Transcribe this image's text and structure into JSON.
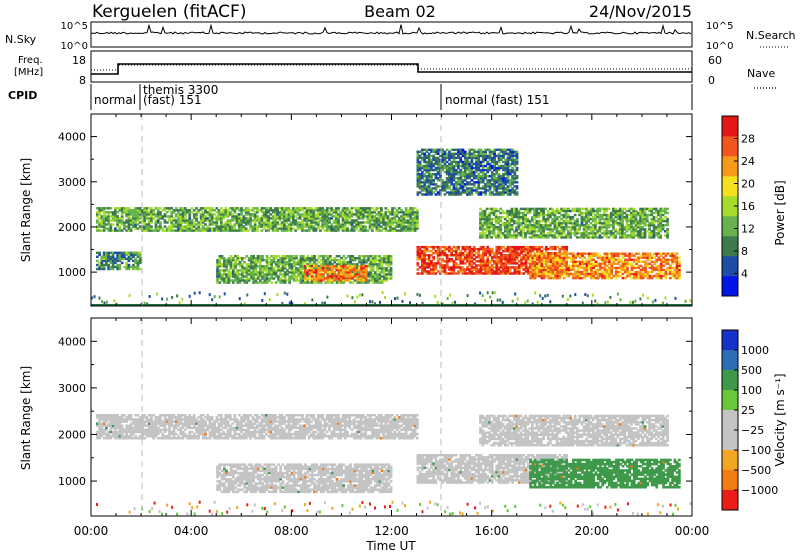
{
  "header": {
    "title": "Kerguelen (fitACF)",
    "beam": "Beam 02",
    "date": "24/Nov/2015"
  },
  "sky_panel": {
    "left_label": "N.Sky",
    "right_label": "N.Search",
    "left_ticks": [
      "10^5",
      "10^0"
    ],
    "right_ticks": [
      "10^5",
      "10^0"
    ]
  },
  "freq_panel": {
    "left_label_1": "Freq.",
    "left_label_2": "[MHz]",
    "left_ticks": [
      "18",
      "8"
    ],
    "right_label": "Nave",
    "right_ticks": [
      "60",
      "0"
    ]
  },
  "cpid_panel": {
    "label": "CPID",
    "segments": [
      "normal",
      "themis 3300",
      "(fast) 151",
      "normal (fast) 151"
    ]
  },
  "colors": {
    "power": [
      "#0015e6",
      "#1d4da6",
      "#3d7a4d",
      "#66b34d",
      "#a6dc2c",
      "#f4e01e",
      "#f79a1a",
      "#f2561c",
      "#e41616"
    ],
    "velocity": [
      "#1432c8",
      "#2a6fb4",
      "#3e9a4a",
      "#67c93a",
      "#c4c4c4",
      "#c4c4c4",
      "#f2a722",
      "#f37b14",
      "#ea1e16"
    ]
  },
  "chart_data": [
    {
      "type": "heatmap",
      "name": "power",
      "ylabel": "Slant Range [km]",
      "yticks": [
        "1000",
        "2000",
        "3000",
        "4000"
      ],
      "ylim": [
        250,
        4500
      ],
      "xlim": [
        0,
        24
      ],
      "colorbar": {
        "label": "Power [dB]",
        "ticks": [
          "4",
          "8",
          "12",
          "16",
          "20",
          "24",
          "28"
        ],
        "range": [
          0,
          32
        ]
      },
      "features": [
        {
          "t": [
            0.2,
            13.0
          ],
          "range_km": [
            1900,
            2400
          ],
          "value_db": 12
        },
        {
          "t": [
            0.2,
            2.0
          ],
          "range_km": [
            1050,
            1450
          ],
          "value_db": 10
        },
        {
          "t": [
            5.0,
            12.0
          ],
          "range_km": [
            750,
            1350
          ],
          "value_db": 12
        },
        {
          "t": [
            8.5,
            11.0
          ],
          "range_km": [
            800,
            1150
          ],
          "value_db": 25
        },
        {
          "t": [
            13.0,
            19.0
          ],
          "range_km": [
            950,
            1550
          ],
          "value_db": 28
        },
        {
          "t": [
            15.5,
            23.0
          ],
          "range_km": [
            1750,
            2400
          ],
          "value_db": 12
        },
        {
          "t": [
            17.5,
            23.5
          ],
          "range_km": [
            850,
            1400
          ],
          "value_db": 24
        },
        {
          "t": [
            13.0,
            17.0
          ],
          "range_km": [
            2700,
            3700
          ],
          "value_db": 8
        }
      ]
    },
    {
      "type": "heatmap",
      "name": "velocity",
      "ylabel": "Slant Range [km]",
      "xlabel": "Time UT",
      "yticks": [
        "1000",
        "2000",
        "3000",
        "4000"
      ],
      "xticks": [
        "00:00",
        "04:00",
        "08:00",
        "12:00",
        "16:00",
        "20:00",
        "00:00"
      ],
      "ylim": [
        250,
        4500
      ],
      "xlim": [
        0,
        24
      ],
      "colorbar": {
        "label": "Velocity [m s⁻¹]",
        "ticks": [
          "1000",
          "500",
          "100",
          "25",
          "−25",
          "−100",
          "−500",
          "−1000"
        ]
      },
      "features": [
        {
          "t": [
            0.2,
            13.0
          ],
          "range_km": [
            1900,
            2400
          ],
          "value_ms": 0
        },
        {
          "t": [
            5.0,
            12.0
          ],
          "range_km": [
            750,
            1350
          ],
          "value_ms": 0
        },
        {
          "t": [
            13.0,
            19.0
          ],
          "range_km": [
            950,
            1550
          ],
          "value_ms": 0
        },
        {
          "t": [
            17.5,
            23.5
          ],
          "range_km": [
            850,
            1450
          ],
          "value_ms": 200
        },
        {
          "t": [
            15.5,
            23.0
          ],
          "range_km": [
            1750,
            2400
          ],
          "value_ms": 0
        }
      ]
    }
  ]
}
